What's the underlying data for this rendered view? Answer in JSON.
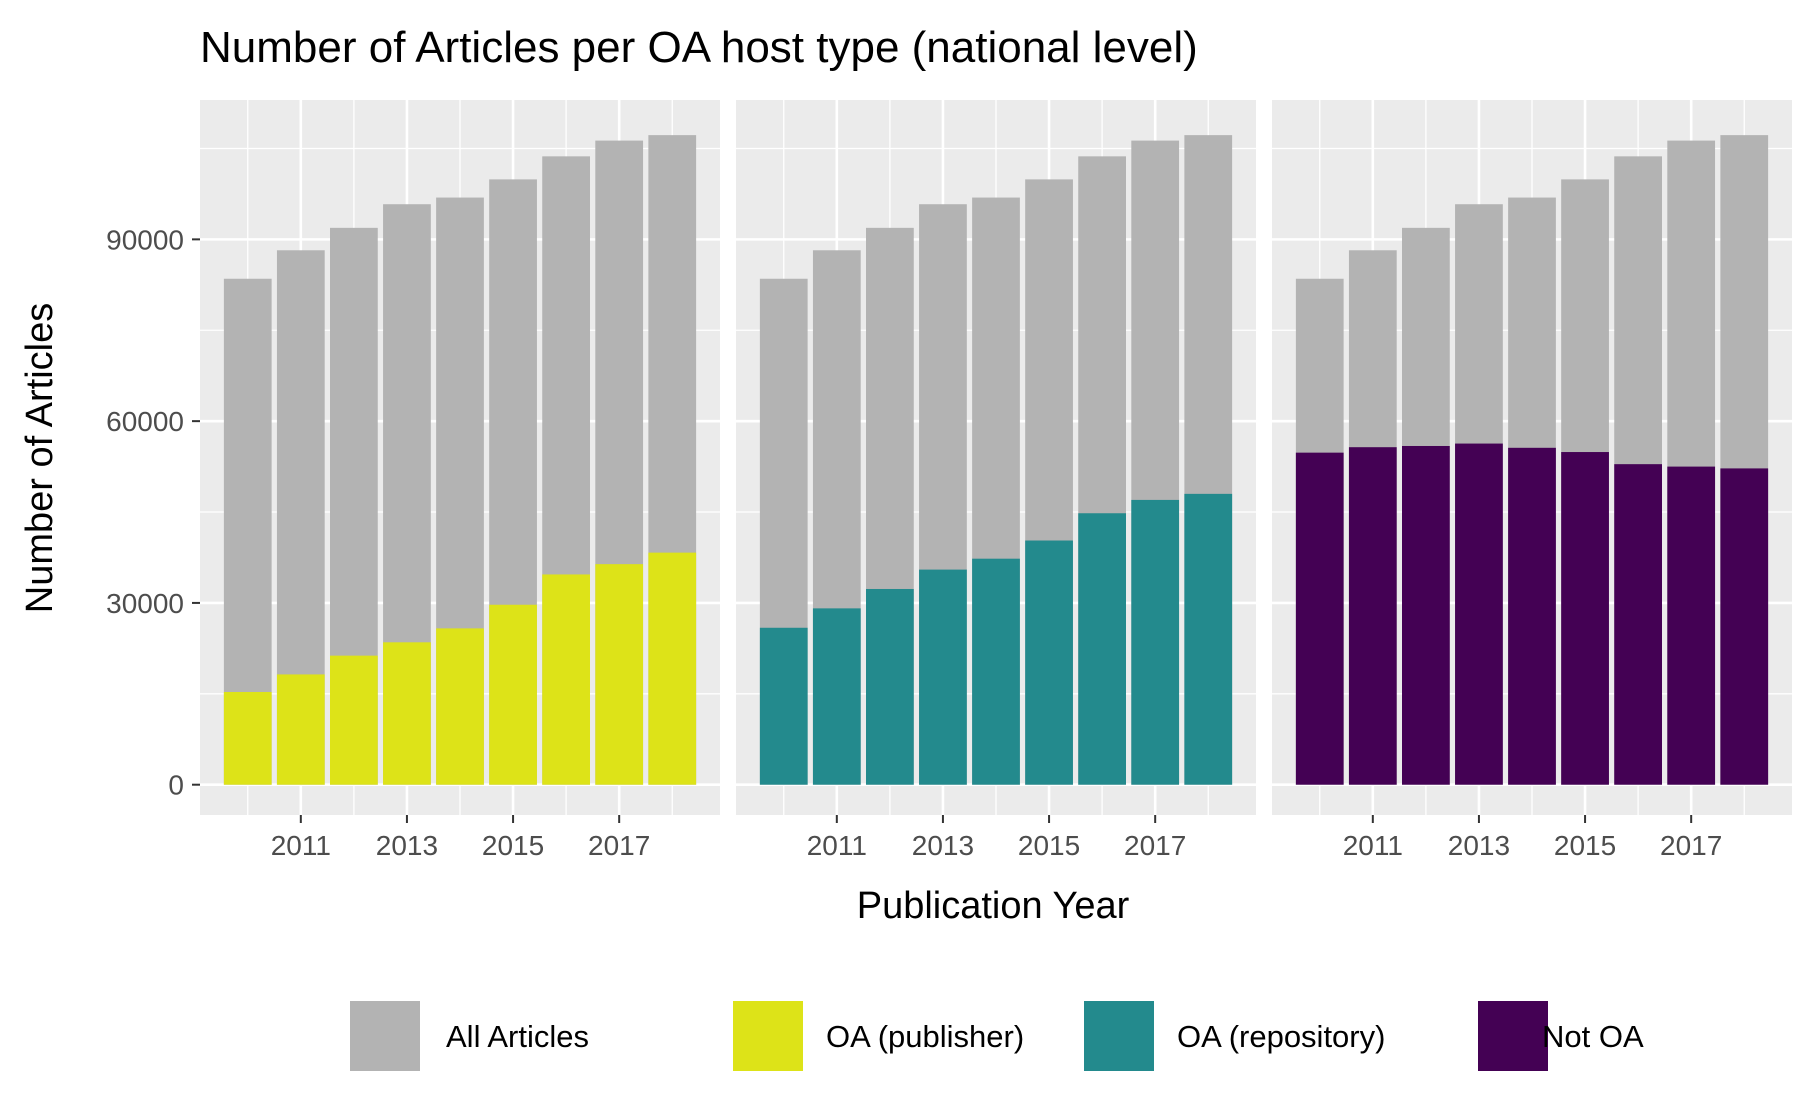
{
  "chart_data": {
    "type": "bar",
    "title": "Number of Articles per OA host type (national level)",
    "xlabel": "Publication Year",
    "ylabel": "Number of Articles",
    "ylim": [
      -5000,
      113000
    ],
    "yticks": [
      0,
      30000,
      60000,
      90000
    ],
    "ytick_labels": [
      "0",
      "30000",
      "60000",
      "90000"
    ],
    "xticks": [
      2011,
      2013,
      2015,
      2017
    ],
    "xtick_labels": [
      "2011",
      "2013",
      "2015",
      "2017"
    ],
    "x": [
      2010,
      2011,
      2012,
      2013,
      2014,
      2015,
      2016,
      2017,
      2018
    ],
    "xlim": [
      2009.1,
      2018.9
    ],
    "grid": true,
    "legend": "bottom",
    "background_series": {
      "name": "All Articles",
      "color": "#b3b3b3",
      "values": [
        83500,
        88200,
        91900,
        95800,
        96900,
        99900,
        103700,
        106300,
        107200
      ]
    },
    "panels": [
      {
        "name": "OA (publisher)",
        "color": "#dde318",
        "values": [
          15300,
          18200,
          21300,
          23500,
          25800,
          29700,
          34700,
          36400,
          38300
        ]
      },
      {
        "name": "OA (repository)",
        "color": "#238a8d",
        "values": [
          25900,
          29100,
          32300,
          35500,
          37300,
          40300,
          44800,
          47000,
          48000
        ]
      },
      {
        "name": "Not OA",
        "color": "#440154",
        "values": [
          54800,
          55700,
          55900,
          56300,
          55600,
          54900,
          52900,
          52500,
          52200
        ]
      }
    ],
    "legend_items": [
      {
        "label": "All Articles",
        "color": "#b3b3b3"
      },
      {
        "label": "OA (publisher)",
        "color": "#dde318"
      },
      {
        "label": "OA (repository)",
        "color": "#238a8d"
      },
      {
        "label": "Not OA",
        "color": "#440154"
      }
    ],
    "panel_background": "#ebebeb",
    "grid_color": "#ffffff"
  }
}
